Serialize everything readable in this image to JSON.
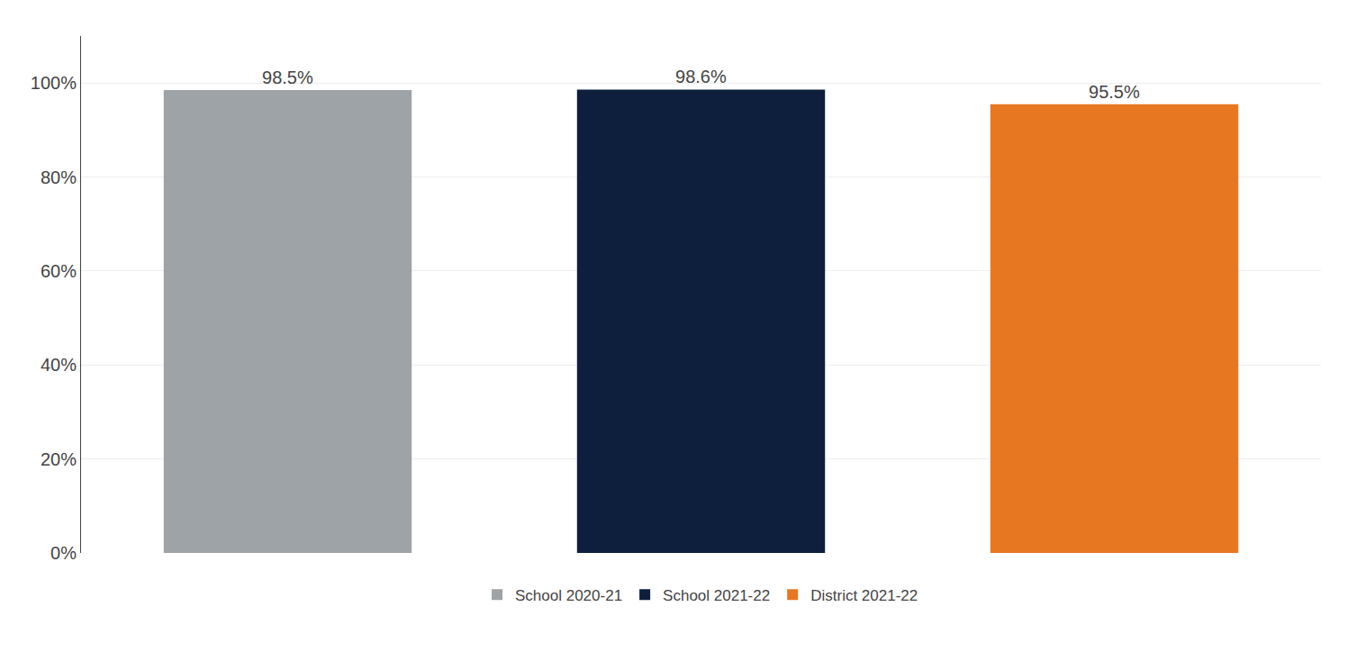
{
  "chart_data": {
    "type": "bar",
    "categories": [
      "School 2020-21",
      "School 2021-22",
      "District 2021-22"
    ],
    "values": [
      98.5,
      98.6,
      95.5
    ],
    "value_labels": [
      "98.5%",
      "98.6%",
      "95.5%"
    ],
    "colors": [
      "#9EA3A8",
      "#0D1F3C",
      "#E87722"
    ],
    "ylim": [
      0,
      110
    ],
    "yticks": [
      {
        "value": 0,
        "label": "0%"
      },
      {
        "value": 20,
        "label": "20%"
      },
      {
        "value": 40,
        "label": "40%"
      },
      {
        "value": 60,
        "label": "60%"
      },
      {
        "value": 80,
        "label": "80%"
      },
      {
        "value": 100,
        "label": "100%"
      }
    ],
    "grid": true,
    "legend": "bottom",
    "data_labels": true,
    "tick_labels": "y"
  }
}
